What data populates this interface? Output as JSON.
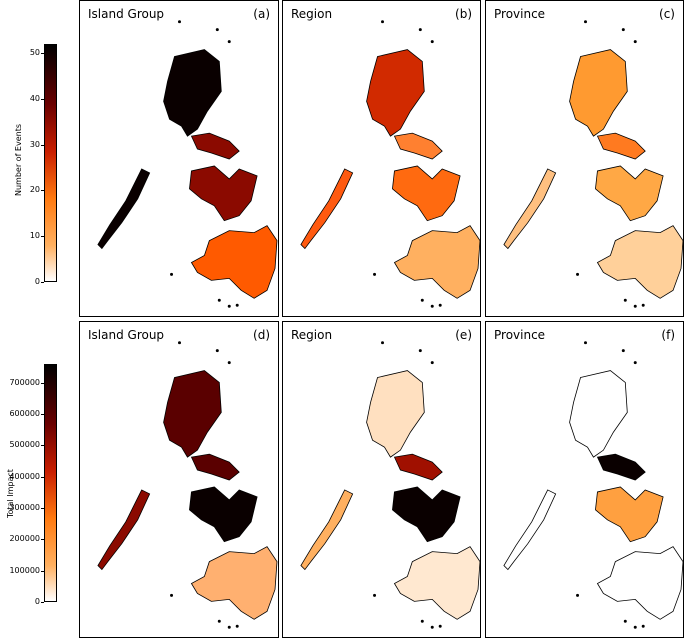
{
  "colorbars": [
    {
      "title": "Number of Events",
      "min": 0,
      "max": 52,
      "ticks": [
        0,
        10,
        20,
        30,
        40,
        50
      ]
    },
    {
      "title": "Total Impact",
      "min": 0,
      "max": 760000,
      "ticks": [
        0,
        100000,
        200000,
        300000,
        400000,
        500000,
        600000,
        700000
      ]
    }
  ],
  "panels": [
    {
      "title": "Island Group",
      "label": "(a)",
      "colors": {
        "luzon": "#0a0000",
        "visayas": "#8b0a00",
        "mindanao": "#ff5a00",
        "palawan": "#0a0000",
        "extra": "#8b0a00"
      }
    },
    {
      "title": "Region",
      "label": "(b)",
      "colors": {
        "luzon": "#d12a00",
        "visayas": "#ff6a10",
        "mindanao": "#ffb060",
        "palawan": "#ff5a10",
        "extra": "#ff8030"
      }
    },
    {
      "title": "Province",
      "label": "(c)",
      "colors": {
        "luzon": "#ff9a30",
        "visayas": "#ffa845",
        "mindanao": "#ffd09a",
        "palawan": "#ffc080",
        "extra": "#ff7a20"
      }
    },
    {
      "title": "Island Group",
      "label": "(d)",
      "colors": {
        "luzon": "#5a0000",
        "visayas": "#0a0000",
        "mindanao": "#ffb070",
        "palawan": "#8b0a00",
        "extra": "#5a0000"
      }
    },
    {
      "title": "Region",
      "label": "(e)",
      "colors": {
        "luzon": "#ffe0c0",
        "visayas": "#0a0000",
        "mindanao": "#ffe8d0",
        "palawan": "#ffb060",
        "extra": "#a01000"
      }
    },
    {
      "title": "Province",
      "label": "(f)",
      "colors": {
        "luzon": "#ffffff",
        "visayas": "#ffa040",
        "mindanao": "#ffffff",
        "palawan": "#ffffff",
        "extra": "#0a0000"
      }
    }
  ]
}
